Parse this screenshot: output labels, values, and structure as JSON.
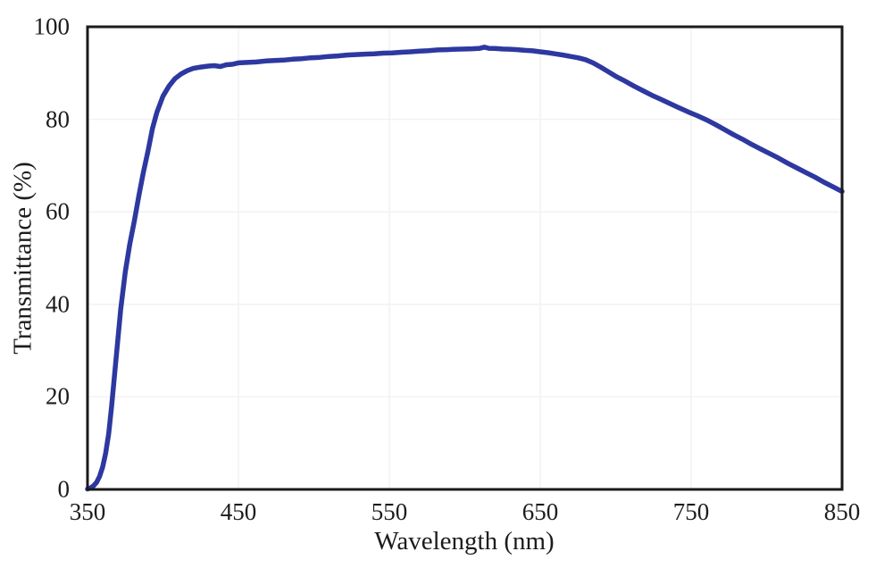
{
  "figure": {
    "background": "#ffffff",
    "axis_text_color": "#1c1c1c",
    "border_color": "#1a1a1a",
    "grid_color": "#f2f2f2"
  },
  "chart_data": {
    "type": "line",
    "title": "",
    "xlabel": "Wavelength (nm)",
    "ylabel": "Transmittance (%)",
    "xlim": [
      350,
      850
    ],
    "ylim": [
      0,
      100
    ],
    "x_ticks": [
      "350",
      "450",
      "550",
      "650",
      "750",
      "850"
    ],
    "x_tick_values": [
      350,
      450,
      550,
      650,
      750,
      850
    ],
    "y_ticks": [
      "0",
      "20",
      "40",
      "60",
      "80",
      "100"
    ],
    "y_tick_values": [
      0,
      20,
      40,
      60,
      80,
      100
    ],
    "grid": true,
    "legend_position": "none",
    "series": [
      {
        "name": "Transmittance",
        "color": "#2d38a0",
        "stroke_width": 5.5,
        "points": [
          [
            350,
            0.1
          ],
          [
            352,
            0.3
          ],
          [
            354,
            0.8
          ],
          [
            356,
            1.5
          ],
          [
            358,
            2.8
          ],
          [
            360,
            4.8
          ],
          [
            362,
            7.8
          ],
          [
            364,
            12
          ],
          [
            366,
            18
          ],
          [
            368,
            25
          ],
          [
            370,
            32
          ],
          [
            372,
            39
          ],
          [
            375,
            47
          ],
          [
            378,
            53
          ],
          [
            381,
            58
          ],
          [
            384,
            63.5
          ],
          [
            387,
            68.5
          ],
          [
            390,
            73
          ],
          [
            393,
            78
          ],
          [
            396,
            81.5
          ],
          [
            400,
            85
          ],
          [
            404,
            87.2
          ],
          [
            408,
            88.8
          ],
          [
            412,
            89.8
          ],
          [
            416,
            90.5
          ],
          [
            420,
            91
          ],
          [
            425,
            91.3
          ],
          [
            430,
            91.5
          ],
          [
            434,
            91.6
          ],
          [
            438,
            91.4
          ],
          [
            442,
            91.8
          ],
          [
            446,
            91.9
          ],
          [
            450,
            92.2
          ],
          [
            456,
            92.3
          ],
          [
            462,
            92.4
          ],
          [
            468,
            92.6
          ],
          [
            474,
            92.7
          ],
          [
            480,
            92.8
          ],
          [
            486,
            93
          ],
          [
            492,
            93.1
          ],
          [
            498,
            93.3
          ],
          [
            504,
            93.4
          ],
          [
            510,
            93.6
          ],
          [
            516,
            93.7
          ],
          [
            522,
            93.9
          ],
          [
            528,
            94
          ],
          [
            534,
            94.1
          ],
          [
            540,
            94.15
          ],
          [
            546,
            94.3
          ],
          [
            552,
            94.35
          ],
          [
            558,
            94.5
          ],
          [
            564,
            94.6
          ],
          [
            570,
            94.75
          ],
          [
            576,
            94.85
          ],
          [
            582,
            95
          ],
          [
            588,
            95.05
          ],
          [
            594,
            95.15
          ],
          [
            600,
            95.2
          ],
          [
            605,
            95.25
          ],
          [
            610,
            95.35
          ],
          [
            613,
            95.6
          ],
          [
            616,
            95.35
          ],
          [
            620,
            95.3
          ],
          [
            625,
            95.2
          ],
          [
            630,
            95.15
          ],
          [
            635,
            95.05
          ],
          [
            640,
            94.9
          ],
          [
            645,
            94.8
          ],
          [
            650,
            94.6
          ],
          [
            655,
            94.4
          ],
          [
            660,
            94.15
          ],
          [
            665,
            93.9
          ],
          [
            670,
            93.6
          ],
          [
            675,
            93.3
          ],
          [
            680,
            92.9
          ],
          [
            685,
            92.2
          ],
          [
            690,
            91.3
          ],
          [
            695,
            90.3
          ],
          [
            700,
            89.3
          ],
          [
            706,
            88.3
          ],
          [
            712,
            87.2
          ],
          [
            718,
            86.2
          ],
          [
            724,
            85.2
          ],
          [
            730,
            84.3
          ],
          [
            736,
            83.4
          ],
          [
            742,
            82.5
          ],
          [
            748,
            81.6
          ],
          [
            754,
            80.8
          ],
          [
            760,
            79.9
          ],
          [
            766,
            78.9
          ],
          [
            772,
            77.8
          ],
          [
            778,
            76.7
          ],
          [
            784,
            75.7
          ],
          [
            790,
            74.6
          ],
          [
            796,
            73.6
          ],
          [
            802,
            72.6
          ],
          [
            808,
            71.6
          ],
          [
            814,
            70.5
          ],
          [
            820,
            69.5
          ],
          [
            826,
            68.5
          ],
          [
            832,
            67.5
          ],
          [
            838,
            66.4
          ],
          [
            844,
            65.4
          ],
          [
            850,
            64.4
          ]
        ]
      }
    ]
  }
}
